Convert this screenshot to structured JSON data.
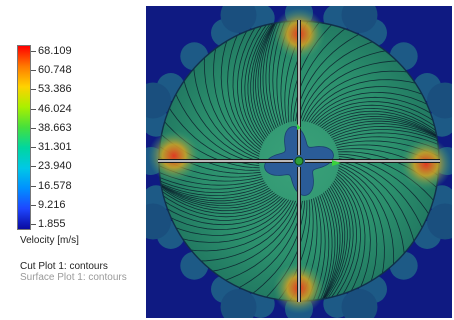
{
  "legend": {
    "ticks": [
      "68.109",
      "60.748",
      "53.386",
      "46.024",
      "38.663",
      "31.301",
      "23.940",
      "16.578",
      "9.216",
      "1.855"
    ],
    "units": "Velocity [m/s]",
    "colors": [
      "#ff0000",
      "#ff7a00",
      "#ffd200",
      "#aaf000",
      "#46e03c",
      "#00d6a0",
      "#00c8e6",
      "#0090ff",
      "#1e46ff",
      "#0a0aa0"
    ]
  },
  "plots": {
    "cut_plot": "Cut Plot 1: contours",
    "surface_plot": "Surface Plot 1: contours"
  },
  "view": {
    "background_color": "#0f1a82",
    "disk_color": "#2a9470",
    "hub_color": "#2a5c98",
    "hotspot_color": "#d8442c"
  }
}
